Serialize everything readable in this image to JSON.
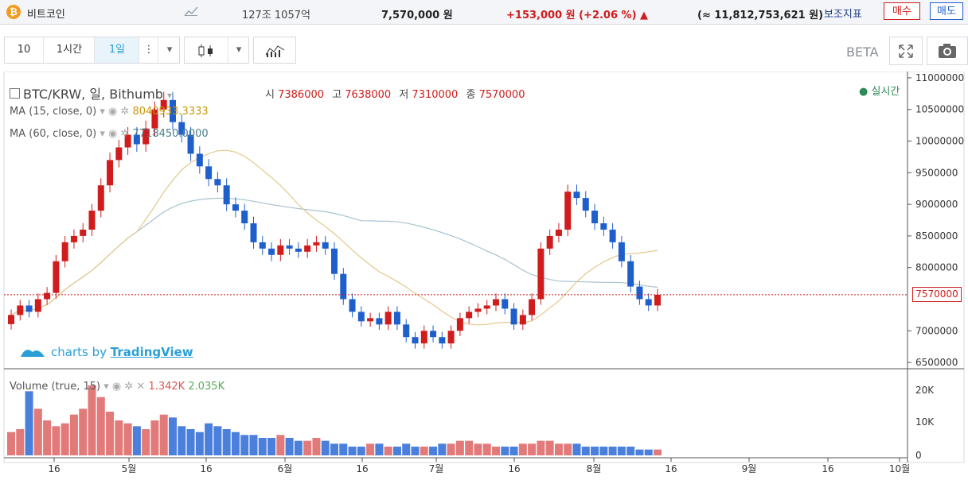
{
  "top": {
    "coin_symbol": "₿",
    "coin_name": "비트코인",
    "volume_24h": "127조 1057억",
    "price": "7,570,000 원",
    "change": "+153,000 원 (+2.06 %) ▲",
    "market_cap": "(≈ 11,812,753,621 원)",
    "aux_indicator": "보조지표",
    "buy_label": "매수",
    "sell_label": "매도"
  },
  "toolbar": {
    "interval_count": "10",
    "tab_1h": "1시간",
    "tab_1d": "1일",
    "beta_label": "BETA"
  },
  "chart": {
    "title": "BTC/KRW, 일, Bithumb",
    "ohlc": {
      "open_label": "시",
      "open": "7386000",
      "high_label": "고",
      "high": "7638000",
      "low_label": "저",
      "low": "7310000",
      "close_label": "종",
      "close": "7570000"
    },
    "realtime_label": "실시간",
    "ma15_label": "MA (15, close, 0)",
    "ma15_value": "8040933.3333",
    "ma60_label": "MA (60, close, 0)",
    "ma60_value": "7718450.0000",
    "volume_label": "Volume (true, 15)",
    "volume_a": "1.342K",
    "volume_b": "2.035K",
    "brand_prefix": "charts by ",
    "brand_name": "TradingView",
    "current_price_tag": "7570000",
    "colors": {
      "up": "#d01c1c",
      "down": "#1e5fcc",
      "ma15": "#e3c98a",
      "ma60": "#a9c2cf"
    }
  },
  "chart_data": {
    "type": "candlestick",
    "price_axis": [
      "11000000",
      "10500000",
      "10000000",
      "9500000",
      "9000000",
      "8500000",
      "8000000",
      "7570000",
      "7000000",
      "6500000"
    ],
    "volume_axis": [
      "20K",
      "10K",
      "0"
    ],
    "time_axis": [
      "16",
      "5월",
      "16",
      "6월",
      "16",
      "7월",
      "16",
      "8월",
      "16",
      "9월",
      "16",
      "10월"
    ],
    "ylim": [
      6400000,
      11100000
    ],
    "close_series": [
      7250000,
      7400000,
      7300000,
      7500000,
      7600000,
      8100000,
      8400000,
      8500000,
      8600000,
      8900000,
      9300000,
      9700000,
      9900000,
      10100000,
      9950000,
      10200000,
      10500000,
      10650000,
      10300000,
      10100000,
      9800000,
      9600000,
      9400000,
      9300000,
      9000000,
      8900000,
      8700000,
      8400000,
      8300000,
      8200000,
      8350000,
      8300000,
      8250000,
      8350000,
      8400000,
      8300000,
      7900000,
      7500000,
      7300000,
      7150000,
      7200000,
      7100000,
      7300000,
      7100000,
      6900000,
      6800000,
      7000000,
      6900000,
      6800000,
      7000000,
      7200000,
      7300000,
      7350000,
      7400000,
      7500000,
      7350000,
      7100000,
      7250000,
      7500000,
      8300000,
      8500000,
      8600000,
      9200000,
      9100000,
      8900000,
      8700000,
      8600000,
      8400000,
      8100000,
      7700000,
      7500000,
      7400000,
      7570000
    ],
    "volume_series": [
      8,
      9,
      22,
      16,
      12,
      10,
      11,
      14,
      16,
      24,
      20,
      15,
      12,
      11,
      10,
      9,
      12,
      14,
      13,
      10,
      9,
      8,
      11,
      10,
      9,
      8,
      7,
      7,
      6,
      6,
      7,
      6,
      5,
      5,
      6,
      5,
      4,
      4,
      3,
      3,
      4,
      4,
      3,
      3,
      4,
      3,
      3,
      3,
      4,
      4,
      5,
      5,
      4,
      4,
      3,
      3,
      3,
      4,
      4,
      5,
      5,
      4,
      4,
      4,
      3,
      3,
      3,
      3,
      3,
      3,
      2,
      2,
      2
    ]
  }
}
